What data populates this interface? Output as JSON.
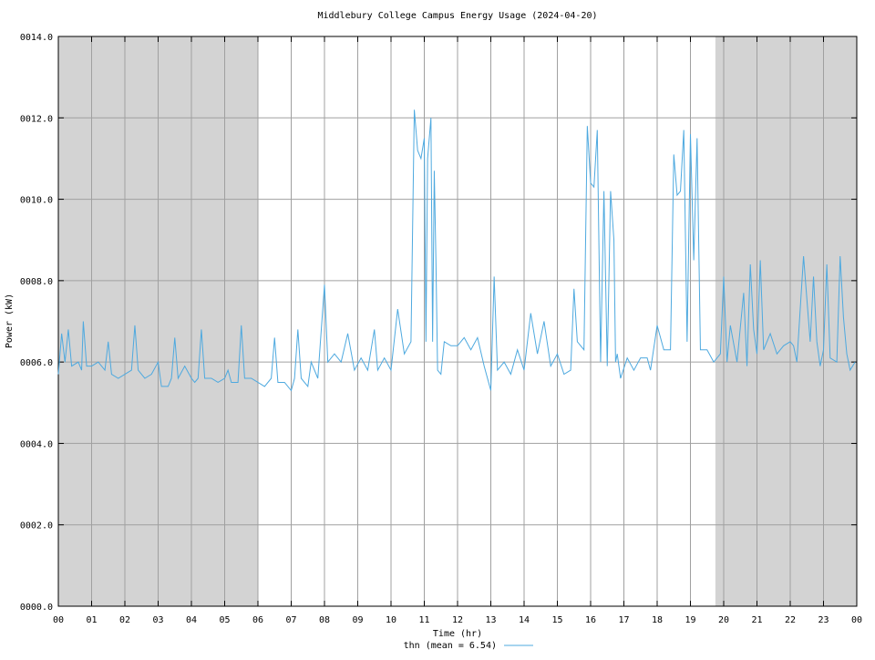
{
  "chart_data": {
    "type": "line",
    "title": "Middlebury College Campus Energy Usage (2024-04-20)",
    "xlabel": "Time (hr)",
    "ylabel": "Power (kW)",
    "xlim": [
      0,
      24
    ],
    "ylim": [
      0,
      14
    ],
    "xticks": [
      {
        "value": 0,
        "label": "00"
      },
      {
        "value": 1,
        "label": "01"
      },
      {
        "value": 2,
        "label": "02"
      },
      {
        "value": 3,
        "label": "03"
      },
      {
        "value": 4,
        "label": "04"
      },
      {
        "value": 5,
        "label": "05"
      },
      {
        "value": 6,
        "label": "06"
      },
      {
        "value": 7,
        "label": "07"
      },
      {
        "value": 8,
        "label": "08"
      },
      {
        "value": 9,
        "label": "09"
      },
      10,
      11,
      12,
      13,
      14,
      15,
      16,
      17,
      18,
      19,
      20,
      21,
      22,
      23,
      {
        "value": 24,
        "label": "00"
      }
    ],
    "yticks": [
      {
        "value": 0,
        "label": "0000.0"
      },
      {
        "value": 2,
        "label": "0002.0"
      },
      {
        "value": 4,
        "label": "0004.0"
      },
      {
        "value": 6,
        "label": "0006.0"
      },
      {
        "value": 8,
        "label": "0008.0"
      },
      {
        "value": 10,
        "label": "0010.0"
      },
      {
        "value": 12,
        "label": "0012.0"
      },
      {
        "value": 14,
        "label": "0014.0"
      }
    ],
    "grid": true,
    "shaded_ranges": [
      [
        0,
        6
      ],
      [
        19.75,
        24
      ]
    ],
    "shade_color": "#d3d3d3",
    "legend": "bottom",
    "series": [
      {
        "name": "thn (mean = 6.54)",
        "color": "#4ea9df",
        "x": [
          0,
          0.1,
          0.2,
          0.3,
          0.4,
          0.6,
          0.7,
          0.75,
          0.85,
          1.0,
          1.2,
          1.4,
          1.5,
          1.6,
          1.8,
          2.0,
          2.2,
          2.3,
          2.4,
          2.6,
          2.8,
          3.0,
          3.1,
          3.3,
          3.4,
          3.5,
          3.6,
          3.8,
          4.0,
          4.1,
          4.2,
          4.3,
          4.4,
          4.6,
          4.8,
          5.0,
          5.1,
          5.2,
          5.4,
          5.5,
          5.6,
          5.8,
          6.0,
          6.2,
          6.4,
          6.5,
          6.6,
          6.8,
          7.0,
          7.1,
          7.2,
          7.3,
          7.5,
          7.6,
          7.8,
          8.0,
          8.1,
          8.3,
          8.5,
          8.7,
          8.9,
          9.1,
          9.3,
          9.5,
          9.6,
          9.8,
          10.0,
          10.2,
          10.4,
          10.6,
          10.7,
          10.8,
          10.9,
          11.0,
          11.05,
          11.1,
          11.2,
          11.25,
          11.3,
          11.35,
          11.4,
          11.5,
          11.6,
          11.8,
          12.0,
          12.2,
          12.4,
          12.6,
          12.8,
          13.0,
          13.1,
          13.2,
          13.4,
          13.6,
          13.8,
          14.0,
          14.2,
          14.4,
          14.6,
          14.8,
          15.0,
          15.2,
          15.4,
          15.5,
          15.6,
          15.8,
          15.9,
          16.0,
          16.1,
          16.2,
          16.3,
          16.4,
          16.5,
          16.6,
          16.7,
          16.75,
          16.8,
          16.9,
          17.1,
          17.3,
          17.5,
          17.7,
          17.8,
          18.0,
          18.2,
          18.4,
          18.5,
          18.6,
          18.7,
          18.8,
          18.9,
          19.0,
          19.1,
          19.2,
          19.3,
          19.5,
          19.7,
          19.9,
          20.0,
          20.1,
          20.2,
          20.4,
          20.6,
          20.7,
          20.8,
          20.9,
          21.0,
          21.1,
          21.2,
          21.4,
          21.6,
          21.8,
          22.0,
          22.1,
          22.2,
          22.4,
          22.6,
          22.7,
          22.8,
          22.9,
          23.0,
          23.1,
          23.2,
          23.4,
          23.5,
          23.6,
          23.7,
          23.8,
          23.95
        ],
        "values": [
          5.7,
          6.7,
          6.0,
          6.8,
          5.9,
          6.0,
          5.8,
          7.0,
          5.9,
          5.9,
          6.0,
          5.8,
          6.5,
          5.7,
          5.6,
          5.7,
          5.8,
          6.9,
          5.8,
          5.6,
          5.7,
          6.0,
          5.4,
          5.4,
          5.6,
          6.6,
          5.6,
          5.9,
          5.6,
          5.5,
          5.6,
          6.8,
          5.6,
          5.6,
          5.5,
          5.6,
          5.8,
          5.5,
          5.5,
          6.9,
          5.6,
          5.6,
          5.5,
          5.4,
          5.6,
          6.6,
          5.5,
          5.5,
          5.3,
          5.6,
          6.8,
          5.6,
          5.4,
          6.0,
          5.6,
          7.9,
          6.0,
          6.2,
          6.0,
          6.7,
          5.8,
          6.1,
          5.8,
          6.8,
          5.8,
          6.1,
          5.8,
          7.3,
          6.2,
          6.5,
          12.2,
          11.2,
          11.0,
          11.5,
          6.5,
          11.0,
          12.0,
          6.5,
          10.7,
          8.5,
          5.8,
          5.7,
          6.5,
          6.4,
          6.4,
          6.6,
          6.3,
          6.6,
          5.9,
          5.3,
          8.1,
          5.8,
          6.0,
          5.7,
          6.3,
          5.8,
          7.2,
          6.2,
          7.0,
          5.9,
          6.2,
          5.7,
          5.8,
          7.8,
          6.5,
          6.3,
          11.8,
          10.4,
          10.3,
          11.7,
          6.0,
          10.2,
          5.9,
          10.2,
          9.0,
          6.0,
          6.2,
          5.6,
          6.1,
          5.8,
          6.1,
          6.1,
          5.8,
          6.9,
          6.3,
          6.3,
          11.1,
          10.1,
          10.2,
          11.7,
          6.5,
          11.6,
          8.5,
          11.5,
          6.3,
          6.3,
          6.0,
          6.2,
          8.1,
          6.0,
          6.9,
          6.0,
          7.7,
          5.9,
          8.4,
          6.8,
          6.2,
          8.5,
          6.3,
          6.7,
          6.2,
          6.4,
          6.5,
          6.4,
          6.0,
          8.6,
          6.5,
          8.1,
          6.5,
          5.9,
          6.3,
          8.4,
          6.1,
          6.0,
          8.6,
          7.1,
          6.2,
          5.8,
          6.0
        ]
      }
    ]
  }
}
